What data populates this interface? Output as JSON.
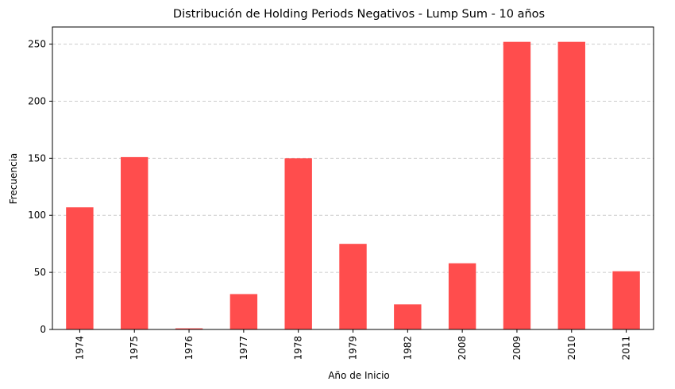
{
  "chart_data": {
    "type": "bar",
    "title": "Distribución de Holding Periods Negativos - Lump Sum - 10 años",
    "xlabel": "Año de Inicio",
    "ylabel": "Frecuencia",
    "categories": [
      "1974",
      "1975",
      "1976",
      "1977",
      "1978",
      "1979",
      "1982",
      "2008",
      "2009",
      "2010",
      "2011"
    ],
    "values": [
      107,
      151,
      1,
      31,
      150,
      75,
      22,
      58,
      252,
      252,
      51
    ],
    "ylim": [
      0,
      265
    ],
    "yticks": [
      0,
      50,
      100,
      150,
      200,
      250
    ],
    "grid": "y-dashed",
    "bar_color": "#ff4d4d",
    "legend": "none"
  }
}
